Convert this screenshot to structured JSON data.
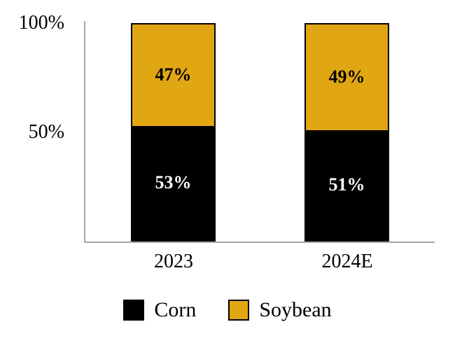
{
  "chart_data": {
    "type": "bar",
    "variant": "stacked-percent",
    "title": "",
    "xlabel": "",
    "ylabel": "",
    "grid": false,
    "legend_position": "bottom",
    "axis_color": "#a6a6a6",
    "value_suffix": "%",
    "ylim": [
      0,
      100
    ],
    "categories": [
      "2023",
      "2024E"
    ],
    "yticks": [
      {
        "label": "100%",
        "value": 100
      },
      {
        "label": "50%",
        "value": 50
      }
    ],
    "series": [
      {
        "name": "Corn",
        "color": "#000000",
        "label_color": "#ffffff",
        "values": [
          53,
          51
        ]
      },
      {
        "name": "Soybean",
        "color": "#e1a713",
        "label_color": "#000000",
        "values": [
          47,
          49
        ]
      }
    ]
  }
}
